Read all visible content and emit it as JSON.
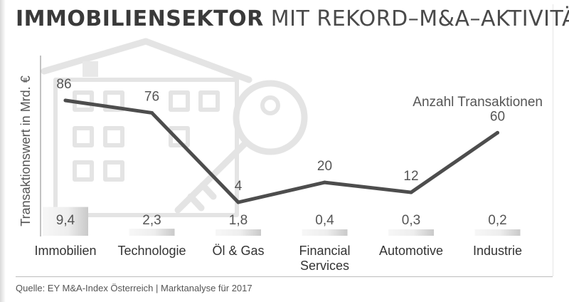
{
  "title": {
    "bold": "IMMOBILIENSEKTOR",
    "light": "MIT REKORD–M&A–AKTIVITÄT"
  },
  "footer": "Quelle: EY M&A-Index Österreich | Marktanalyse für 2017",
  "chart_data": {
    "type": "bar",
    "categories": [
      "Immobilien",
      "Technologie",
      "Öl & Gas",
      "Financial Services",
      "Automotive",
      "Industrie"
    ],
    "category_lines": [
      [
        "Immobilien"
      ],
      [
        "Technologie"
      ],
      [
        "Öl & Gas"
      ],
      [
        "Financial",
        "Services"
      ],
      [
        "Automotive"
      ],
      [
        "Industrie"
      ]
    ],
    "ylabel": "Transaktionswert in Mrd. €",
    "series": [
      {
        "type": "bar",
        "values": [
          9.4,
          2.3,
          1.8,
          0.4,
          0.3,
          0.2
        ],
        "labels": [
          "9,4",
          "2,3",
          "1,8",
          "0,4",
          "0,3",
          "0,2"
        ]
      },
      {
        "type": "line",
        "name": "Anzahl Transaktionen",
        "values": [
          86,
          76,
          4,
          20,
          12,
          60
        ],
        "labels": [
          "86",
          "76",
          "4",
          "20",
          "12",
          "60"
        ]
      }
    ],
    "legend": "top-right",
    "grid": false,
    "colors": {
      "bar_light": "#f2f2f2",
      "bar_dark": "#c8c8c8",
      "line": "#4d4d4d",
      "illustration": "#e3e3e3"
    },
    "illustration": "house-and-key-icon"
  }
}
